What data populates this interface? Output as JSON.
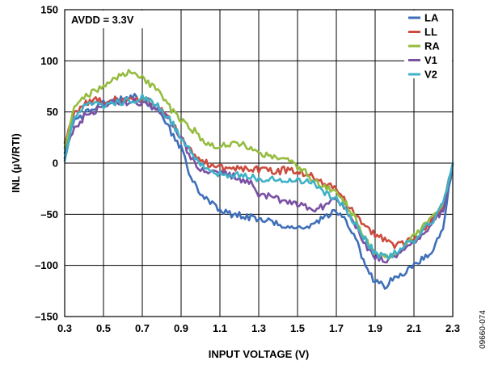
{
  "chart_data": {
    "type": "line",
    "title": "",
    "xlabel": "INPUT VOLTAGE (V)",
    "ylabel": "INL (µV/RTI)",
    "xlim": [
      0.3,
      2.3
    ],
    "ylim": [
      -150,
      150
    ],
    "x_ticks": [
      0.3,
      0.5,
      0.7,
      0.9,
      1.1,
      1.3,
      1.5,
      1.7,
      1.9,
      2.1,
      2.3
    ],
    "y_ticks": [
      -150,
      -100,
      -50,
      0,
      50,
      100,
      150
    ],
    "x_tick_labels": [
      "0.3",
      "0.5",
      "0.7",
      "0.9",
      "1.1",
      "1.3",
      "1.5",
      "1.7",
      "1.9",
      "2.1",
      "2.3"
    ],
    "y_tick_labels": [
      "–150",
      "–100",
      "–50",
      "0",
      "50",
      "100",
      "150"
    ],
    "grid": true,
    "legend_position": "top-right",
    "annotation": "AVDD = 3.3V",
    "figure_id": "09660-074",
    "series": [
      {
        "name": "LA",
        "color": "#3f6fb8",
        "x": [
          0.3,
          0.34,
          0.4,
          0.45,
          0.5,
          0.55,
          0.6,
          0.65,
          0.7,
          0.75,
          0.8,
          0.85,
          0.9,
          0.95,
          1.0,
          1.05,
          1.1,
          1.15,
          1.2,
          1.25,
          1.3,
          1.35,
          1.4,
          1.45,
          1.5,
          1.55,
          1.6,
          1.65,
          1.7,
          1.75,
          1.8,
          1.85,
          1.9,
          1.95,
          2.0,
          2.05,
          2.1,
          2.15,
          2.2,
          2.25,
          2.3
        ],
        "y": [
          10,
          38,
          48,
          55,
          58,
          60,
          63,
          66,
          62,
          55,
          45,
          30,
          15,
          -15,
          -28,
          -38,
          -47,
          -50,
          -50,
          -53,
          -55,
          -57,
          -60,
          -62,
          -63,
          -62,
          -58,
          -52,
          -47,
          -55,
          -75,
          -100,
          -117,
          -120,
          -113,
          -108,
          -100,
          -92,
          -85,
          -65,
          0
        ]
      },
      {
        "name": "LL",
        "color": "#cc4b3f",
        "x": [
          0.3,
          0.34,
          0.4,
          0.45,
          0.5,
          0.55,
          0.6,
          0.65,
          0.7,
          0.75,
          0.8,
          0.85,
          0.9,
          0.95,
          1.0,
          1.05,
          1.1,
          1.15,
          1.2,
          1.25,
          1.3,
          1.35,
          1.4,
          1.45,
          1.5,
          1.55,
          1.6,
          1.65,
          1.7,
          1.75,
          1.8,
          1.85,
          1.9,
          1.95,
          2.0,
          2.05,
          2.1,
          2.15,
          2.2,
          2.25,
          2.3
        ],
        "y": [
          20,
          45,
          58,
          63,
          60,
          62,
          60,
          65,
          63,
          58,
          52,
          40,
          25,
          12,
          5,
          -2,
          -5,
          -5,
          -5,
          -5,
          -6,
          -6,
          -8,
          -6,
          -8,
          -10,
          -15,
          -20,
          -25,
          -38,
          -50,
          -62,
          -70,
          -75,
          -80,
          -78,
          -73,
          -65,
          -55,
          -40,
          0
        ]
      },
      {
        "name": "RA",
        "color": "#95bc3f",
        "x": [
          0.3,
          0.34,
          0.4,
          0.45,
          0.5,
          0.55,
          0.6,
          0.65,
          0.7,
          0.75,
          0.8,
          0.85,
          0.9,
          0.95,
          1.0,
          1.05,
          1.1,
          1.15,
          1.2,
          1.25,
          1.3,
          1.35,
          1.4,
          1.45,
          1.5,
          1.55,
          1.6,
          1.65,
          1.7,
          1.75,
          1.8,
          1.85,
          1.9,
          1.95,
          2.0,
          2.05,
          2.1,
          2.15,
          2.2,
          2.25,
          2.3
        ],
        "y": [
          15,
          50,
          65,
          70,
          75,
          80,
          87,
          90,
          85,
          75,
          65,
          52,
          43,
          35,
          25,
          18,
          17,
          18,
          20,
          16,
          10,
          7,
          5,
          2,
          -5,
          -10,
          -20,
          -25,
          -28,
          -40,
          -55,
          -75,
          -88,
          -92,
          -90,
          -82,
          -72,
          -62,
          -52,
          -40,
          0
        ]
      },
      {
        "name": "V1",
        "color": "#7b51a3",
        "x": [
          0.3,
          0.34,
          0.4,
          0.45,
          0.5,
          0.55,
          0.6,
          0.65,
          0.7,
          0.75,
          0.8,
          0.85,
          0.9,
          0.95,
          1.0,
          1.05,
          1.1,
          1.15,
          1.2,
          1.25,
          1.3,
          1.35,
          1.4,
          1.45,
          1.5,
          1.55,
          1.6,
          1.65,
          1.7,
          1.75,
          1.8,
          1.85,
          1.9,
          1.95,
          2.0,
          2.05,
          2.1,
          2.15,
          2.2,
          2.25,
          2.3
        ],
        "y": [
          5,
          30,
          45,
          50,
          55,
          60,
          58,
          62,
          58,
          55,
          48,
          40,
          25,
          5,
          -5,
          -8,
          -10,
          -12,
          -15,
          -18,
          -30,
          -32,
          -35,
          -37,
          -40,
          -42,
          -45,
          -40,
          -35,
          -45,
          -62,
          -80,
          -92,
          -95,
          -92,
          -85,
          -78,
          -68,
          -58,
          -45,
          0
        ]
      },
      {
        "name": "V2",
        "color": "#3fb1c8",
        "x": [
          0.3,
          0.34,
          0.4,
          0.45,
          0.5,
          0.55,
          0.6,
          0.65,
          0.7,
          0.75,
          0.8,
          0.85,
          0.9,
          0.95,
          1.0,
          1.05,
          1.1,
          1.15,
          1.2,
          1.25,
          1.3,
          1.35,
          1.4,
          1.45,
          1.5,
          1.55,
          1.6,
          1.65,
          1.7,
          1.75,
          1.8,
          1.85,
          1.9,
          1.95,
          2.0,
          2.05,
          2.1,
          2.15,
          2.2,
          2.25,
          2.3
        ],
        "y": [
          2,
          40,
          55,
          58,
          55,
          58,
          60,
          62,
          65,
          60,
          52,
          40,
          25,
          10,
          0,
          -8,
          -10,
          -12,
          -12,
          -13,
          -15,
          -15,
          -15,
          -17,
          -18,
          -18,
          -22,
          -30,
          -35,
          -45,
          -60,
          -75,
          -88,
          -92,
          -88,
          -80,
          -75,
          -65,
          -55,
          -40,
          0
        ]
      }
    ]
  }
}
